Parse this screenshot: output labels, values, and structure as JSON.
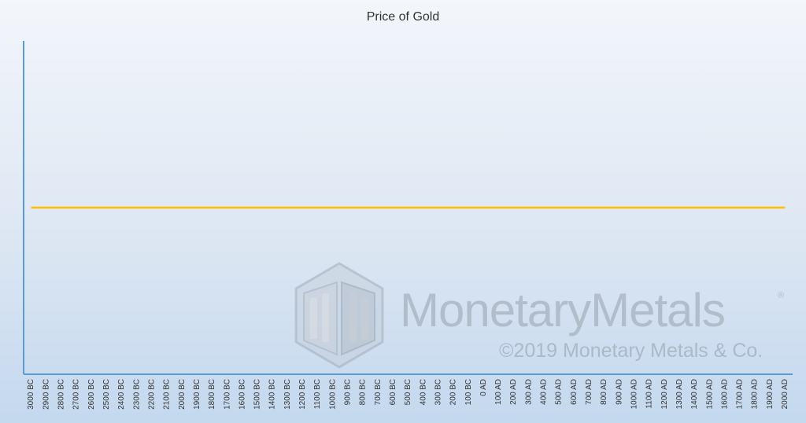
{
  "chart_data": {
    "type": "line",
    "title": "Price of Gold",
    "xlabel": "",
    "ylabel": "",
    "categories": [
      "3000 BC",
      "2900 BC",
      "2800 BC",
      "2700 BC",
      "2600 BC",
      "2500 BC",
      "2400 BC",
      "2300 BC",
      "2200 BC",
      "2100 BC",
      "2000 BC",
      "1900 BC",
      "1800 BC",
      "1700 BC",
      "1600 BC",
      "1500 BC",
      "1400 BC",
      "1300 BC",
      "1200 BC",
      "1100 BC",
      "1000 BC",
      "900 BC",
      "800 BC",
      "700 BC",
      "600 BC",
      "500 BC",
      "400 BC",
      "300 BC",
      "200 BC",
      "100 BC",
      "0 AD",
      "100 AD",
      "200 AD",
      "300 AD",
      "400 AD",
      "500 AD",
      "600 AD",
      "700 AD",
      "800 AD",
      "900 AD",
      "1000 AD",
      "1100 AD",
      "1200 AD",
      "1300 AD",
      "1400 AD",
      "1500 AD",
      "1600 AD",
      "1700 AD",
      "1800 AD",
      "1900 AD",
      "2000 AD"
    ],
    "series": [
      {
        "values": [
          0.5,
          0.5,
          0.5,
          0.5,
          0.5,
          0.5,
          0.5,
          0.5,
          0.5,
          0.5,
          0.5,
          0.5,
          0.5,
          0.5,
          0.5,
          0.5,
          0.5,
          0.5,
          0.5,
          0.5,
          0.5,
          0.5,
          0.5,
          0.5,
          0.5,
          0.5,
          0.5,
          0.5,
          0.5,
          0.5,
          0.5,
          0.5,
          0.5,
          0.5,
          0.5,
          0.5,
          0.5,
          0.5,
          0.5,
          0.5,
          0.5,
          0.5,
          0.5,
          0.5,
          0.5,
          0.5,
          0.5,
          0.5,
          0.5,
          0.5,
          0.5
        ],
        "color": "#ffc000"
      }
    ],
    "ylim": [
      0,
      1
    ],
    "y_tick_labels": false,
    "grid": false,
    "legend": "none",
    "axis_color": "#5b9bd5"
  },
  "watermark": {
    "name": "MonetaryMetals",
    "registered_mark": "®",
    "copyright": "©2019 Monetary Metals & Co."
  }
}
